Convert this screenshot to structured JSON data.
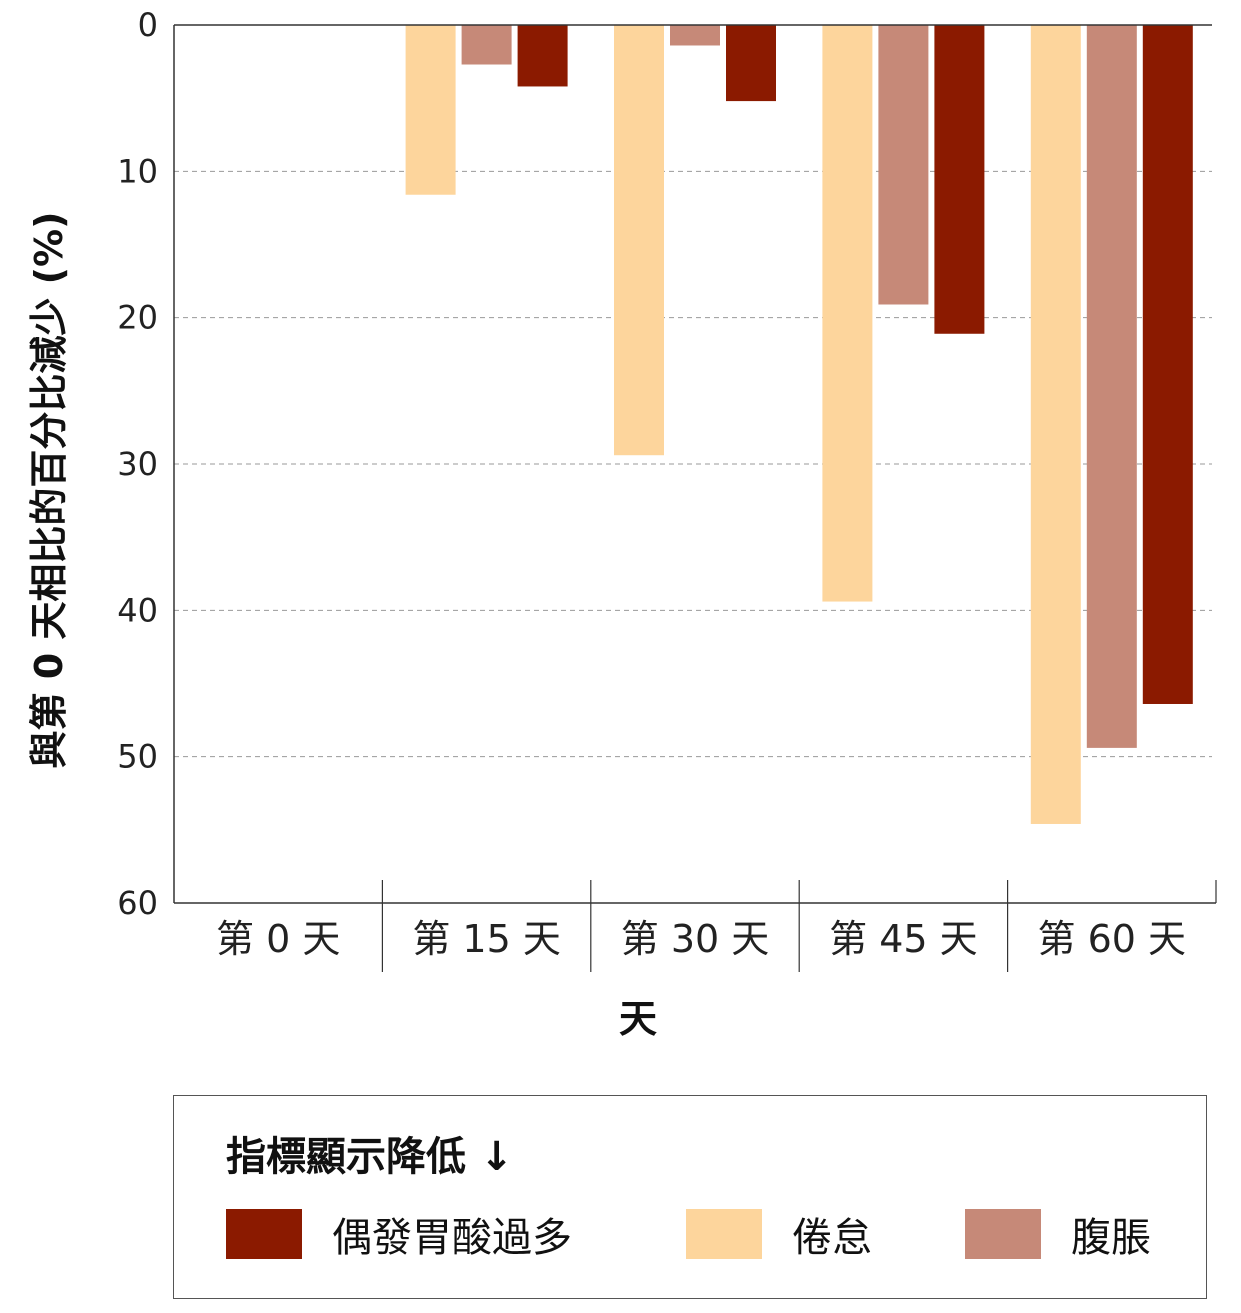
{
  "chart_data": {
    "type": "bar",
    "orientation": "vertical-inverted",
    "categories": [
      "第 0 天",
      "第 15 天",
      "第 30 天",
      "第 45 天",
      "第 60 天"
    ],
    "series": [
      {
        "name": "倦怠",
        "color": "#FDD59C",
        "values": [
          0,
          11.6,
          29.4,
          39.4,
          54.6
        ]
      },
      {
        "name": "腹脹",
        "color": "#C68978",
        "values": [
          0,
          2.7,
          1.4,
          19.1,
          49.4
        ]
      },
      {
        "name": "偶發胃酸過多",
        "color": "#8B1A00",
        "values": [
          0,
          4.2,
          5.2,
          21.1,
          46.4
        ]
      }
    ],
    "xlabel": "天",
    "ylabel": "與第 0 天相比的百分比減少 (%)",
    "ylim": [
      0,
      60
    ],
    "yticks": [
      "0",
      "10",
      "20",
      "30",
      "40",
      "50",
      "60"
    ],
    "grid": "horizontal-dashed",
    "legend": {
      "title": "指標顯示降低 ↓",
      "placement": "bottom",
      "order": [
        "偶發胃酸過多",
        "倦怠",
        "腹脹"
      ]
    }
  }
}
